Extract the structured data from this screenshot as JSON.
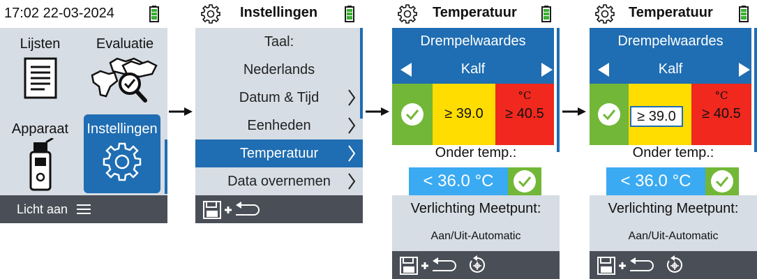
{
  "home": {
    "clock": "17:02 22-03-2024",
    "tiles": [
      {
        "label": "Lijsten",
        "icon": "document-icon"
      },
      {
        "label": "Evaluatie",
        "icon": "cows-search-icon"
      },
      {
        "label": "Apparaat",
        "icon": "probe-device-icon"
      },
      {
        "label": "Instellingen",
        "icon": "gear-icon"
      }
    ],
    "bottom_label": "Licht aan"
  },
  "settings": {
    "title": "Instellingen",
    "items": [
      {
        "label": "Taal:"
      },
      {
        "label": "Nederlands"
      },
      {
        "label": "Datum & Tijd"
      },
      {
        "label": "Eenheden"
      },
      {
        "label": "Temperatuur"
      },
      {
        "label": "Data overnemen"
      }
    ]
  },
  "temperature": {
    "title": "Temperatuur",
    "thresholds_label": "Drempelwaardes",
    "category": "Kalf",
    "yellow_value": "≥ 39.0",
    "red_unit": "°C",
    "red_value": "≥ 40.5",
    "under_label": "Onder temp.:",
    "under_value": "< 36.0 °C",
    "light_label": "Verlichting Meetpunt:",
    "light_value": "Aan/Uit-Automatic"
  },
  "colors": {
    "accent_blue": "#1f6db2",
    "light_blue": "#3aaaf2",
    "green": "#72b737",
    "yellow": "#ffdd00",
    "red": "#f0281e",
    "grey_panel": "#d6dde4",
    "dark_bar": "#4a4e56"
  }
}
